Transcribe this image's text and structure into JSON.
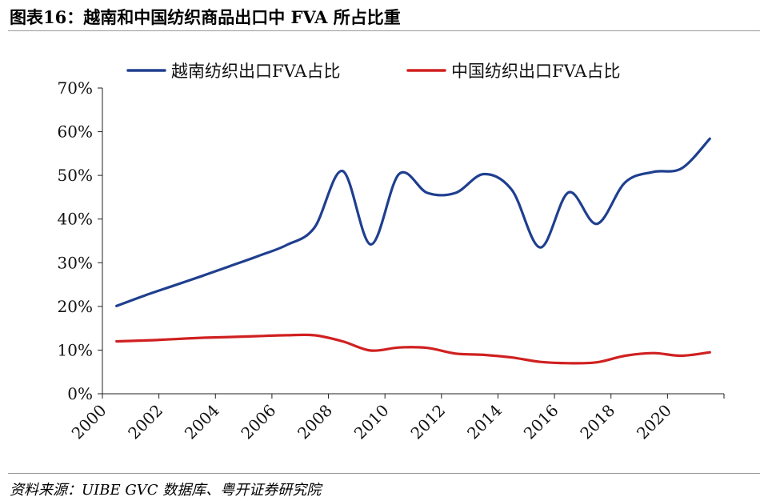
{
  "figure": {
    "title": "图表16：越南和中国纺织商品出口中 FVA 所占比重",
    "source": "资料来源：UIBE GVC 数据库、粤开证券研究院"
  },
  "chart_data": {
    "type": "line",
    "title": "",
    "xlabel": "",
    "ylabel": "",
    "xlim": [
      2000,
      2022
    ],
    "ylim": [
      0,
      70
    ],
    "x_ticks": [
      "2000",
      "2002",
      "2004",
      "2006",
      "2008",
      "2010",
      "2012",
      "2014",
      "2016",
      "2018",
      "2020"
    ],
    "y_ticks": [
      "0%",
      "10%",
      "20%",
      "30%",
      "40%",
      "50%",
      "60%",
      "70%"
    ],
    "grid": false,
    "legend": "top",
    "series": [
      {
        "name": "越南纺织出口FVA占比",
        "color": "#1f3f8f",
        "x": [
          2000.5,
          2001.5,
          2002.5,
          2003.5,
          2004.5,
          2005.5,
          2006.5,
          2007.5,
          2008.5,
          2009.5,
          2010.5,
          2011.5,
          2012.5,
          2013.5,
          2014.5,
          2015.5,
          2016.5,
          2017.5,
          2018.5,
          2019.5,
          2020.5,
          2021.5
        ],
        "values": [
          20.1,
          22.5,
          24.7,
          26.9,
          29.2,
          31.5,
          34.0,
          38.0,
          51.0,
          34.2,
          50.3,
          46.0,
          46.0,
          50.3,
          46.6,
          33.5,
          46.1,
          38.9,
          48.4,
          50.8,
          51.6,
          58.4
        ]
      },
      {
        "name": "中国纺织出口FVA占比",
        "color": "#d02020",
        "x": [
          2000.5,
          2001.5,
          2002.5,
          2003.5,
          2004.5,
          2005.5,
          2006.5,
          2007.5,
          2008.5,
          2009.5,
          2010.5,
          2011.5,
          2012.5,
          2013.5,
          2014.5,
          2015.5,
          2016.5,
          2017.5,
          2018.5,
          2019.5,
          2020.5,
          2021.5
        ],
        "values": [
          12.0,
          12.2,
          12.5,
          12.8,
          13.0,
          13.2,
          13.4,
          13.4,
          12.0,
          9.9,
          10.6,
          10.5,
          9.2,
          8.9,
          8.3,
          7.3,
          7.0,
          7.2,
          8.7,
          9.3,
          8.7,
          9.5
        ]
      }
    ]
  }
}
